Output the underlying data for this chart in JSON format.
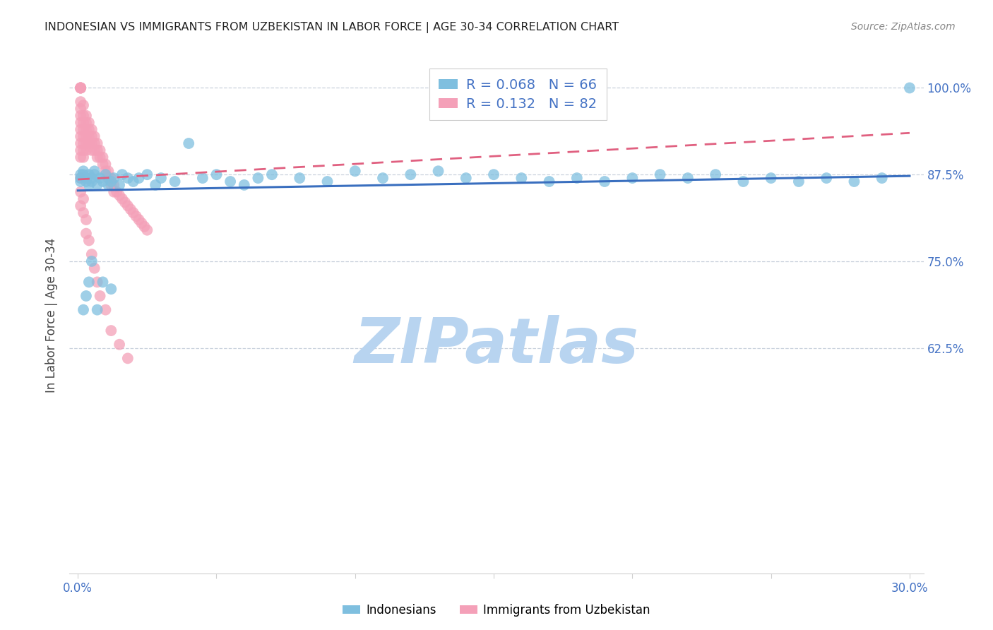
{
  "title": "INDONESIAN VS IMMIGRANTS FROM UZBEKISTAN IN LABOR FORCE | AGE 30-34 CORRELATION CHART",
  "source": "Source: ZipAtlas.com",
  "ylabel": "In Labor Force | Age 30-34",
  "xlim": [
    -0.003,
    0.305
  ],
  "ylim": [
    0.3,
    1.045
  ],
  "xticks": [
    0.0,
    0.05,
    0.1,
    0.15,
    0.2,
    0.25,
    0.3
  ],
  "xticklabels": [
    "0.0%",
    "",
    "",
    "",
    "",
    "",
    "30.0%"
  ],
  "yticks": [
    0.625,
    0.75,
    0.875,
    1.0
  ],
  "yticklabels": [
    "62.5%",
    "75.0%",
    "87.5%",
    "100.0%"
  ],
  "blue_R": 0.068,
  "blue_N": 66,
  "pink_R": 0.132,
  "pink_N": 82,
  "blue_color": "#7fbfdf",
  "pink_color": "#f4a0b8",
  "blue_line_color": "#3a6fbf",
  "pink_line_color": "#e06080",
  "legend_label_blue": "Indonesians",
  "legend_label_pink": "Immigrants from Uzbekistan",
  "watermark": "ZIPatlas",
  "watermark_color": "#b8d4f0",
  "background_color": "#ffffff",
  "blue_trend_x": [
    0.0,
    0.3
  ],
  "blue_trend_y": [
    0.852,
    0.873
  ],
  "pink_trend_x": [
    0.0,
    0.3
  ],
  "pink_trend_y": [
    0.868,
    0.935
  ],
  "blue_x": [
    0.001,
    0.001,
    0.001,
    0.002,
    0.002,
    0.003,
    0.003,
    0.004,
    0.004,
    0.005,
    0.005,
    0.006,
    0.006,
    0.007,
    0.008,
    0.009,
    0.01,
    0.011,
    0.012,
    0.013,
    0.015,
    0.016,
    0.018,
    0.02,
    0.022,
    0.025,
    0.028,
    0.03,
    0.035,
    0.04,
    0.045,
    0.05,
    0.055,
    0.06,
    0.065,
    0.07,
    0.08,
    0.09,
    0.1,
    0.11,
    0.12,
    0.13,
    0.14,
    0.15,
    0.16,
    0.17,
    0.18,
    0.19,
    0.2,
    0.21,
    0.22,
    0.23,
    0.24,
    0.25,
    0.26,
    0.27,
    0.28,
    0.29,
    0.3,
    0.002,
    0.003,
    0.004,
    0.005,
    0.007,
    0.009,
    0.012
  ],
  "blue_y": [
    0.875,
    0.87,
    0.865,
    0.88,
    0.875,
    0.87,
    0.865,
    0.875,
    0.86,
    0.87,
    0.865,
    0.88,
    0.875,
    0.86,
    0.87,
    0.865,
    0.875,
    0.86,
    0.865,
    0.87,
    0.86,
    0.875,
    0.87,
    0.865,
    0.87,
    0.875,
    0.86,
    0.87,
    0.865,
    0.92,
    0.87,
    0.875,
    0.865,
    0.86,
    0.87,
    0.875,
    0.87,
    0.865,
    0.88,
    0.87,
    0.875,
    0.88,
    0.87,
    0.875,
    0.87,
    0.865,
    0.87,
    0.865,
    0.87,
    0.875,
    0.87,
    0.875,
    0.865,
    0.87,
    0.865,
    0.87,
    0.865,
    0.87,
    1.0,
    0.68,
    0.7,
    0.72,
    0.75,
    0.68,
    0.72,
    0.71
  ],
  "pink_x": [
    0.001,
    0.001,
    0.001,
    0.001,
    0.001,
    0.001,
    0.001,
    0.001,
    0.001,
    0.001,
    0.001,
    0.001,
    0.001,
    0.001,
    0.002,
    0.002,
    0.002,
    0.002,
    0.002,
    0.002,
    0.002,
    0.002,
    0.003,
    0.003,
    0.003,
    0.003,
    0.003,
    0.003,
    0.004,
    0.004,
    0.004,
    0.004,
    0.005,
    0.005,
    0.005,
    0.005,
    0.006,
    0.006,
    0.006,
    0.007,
    0.007,
    0.007,
    0.008,
    0.008,
    0.009,
    0.009,
    0.01,
    0.01,
    0.011,
    0.011,
    0.012,
    0.012,
    0.013,
    0.013,
    0.014,
    0.015,
    0.016,
    0.017,
    0.018,
    0.019,
    0.02,
    0.021,
    0.022,
    0.023,
    0.024,
    0.025,
    0.001,
    0.001,
    0.001,
    0.002,
    0.002,
    0.003,
    0.003,
    0.004,
    0.005,
    0.006,
    0.007,
    0.008,
    0.01,
    0.012,
    0.015,
    0.018
  ],
  "pink_y": [
    1.0,
    1.0,
    1.0,
    1.0,
    1.0,
    0.98,
    0.97,
    0.96,
    0.95,
    0.94,
    0.93,
    0.92,
    0.91,
    0.9,
    0.975,
    0.96,
    0.95,
    0.94,
    0.93,
    0.92,
    0.91,
    0.9,
    0.96,
    0.95,
    0.94,
    0.93,
    0.92,
    0.91,
    0.95,
    0.94,
    0.93,
    0.92,
    0.94,
    0.93,
    0.92,
    0.91,
    0.93,
    0.92,
    0.91,
    0.92,
    0.91,
    0.9,
    0.91,
    0.9,
    0.9,
    0.89,
    0.89,
    0.88,
    0.88,
    0.87,
    0.87,
    0.86,
    0.86,
    0.85,
    0.85,
    0.845,
    0.84,
    0.835,
    0.83,
    0.825,
    0.82,
    0.815,
    0.81,
    0.805,
    0.8,
    0.795,
    0.87,
    0.85,
    0.83,
    0.84,
    0.82,
    0.81,
    0.79,
    0.78,
    0.76,
    0.74,
    0.72,
    0.7,
    0.68,
    0.65,
    0.63,
    0.61
  ]
}
